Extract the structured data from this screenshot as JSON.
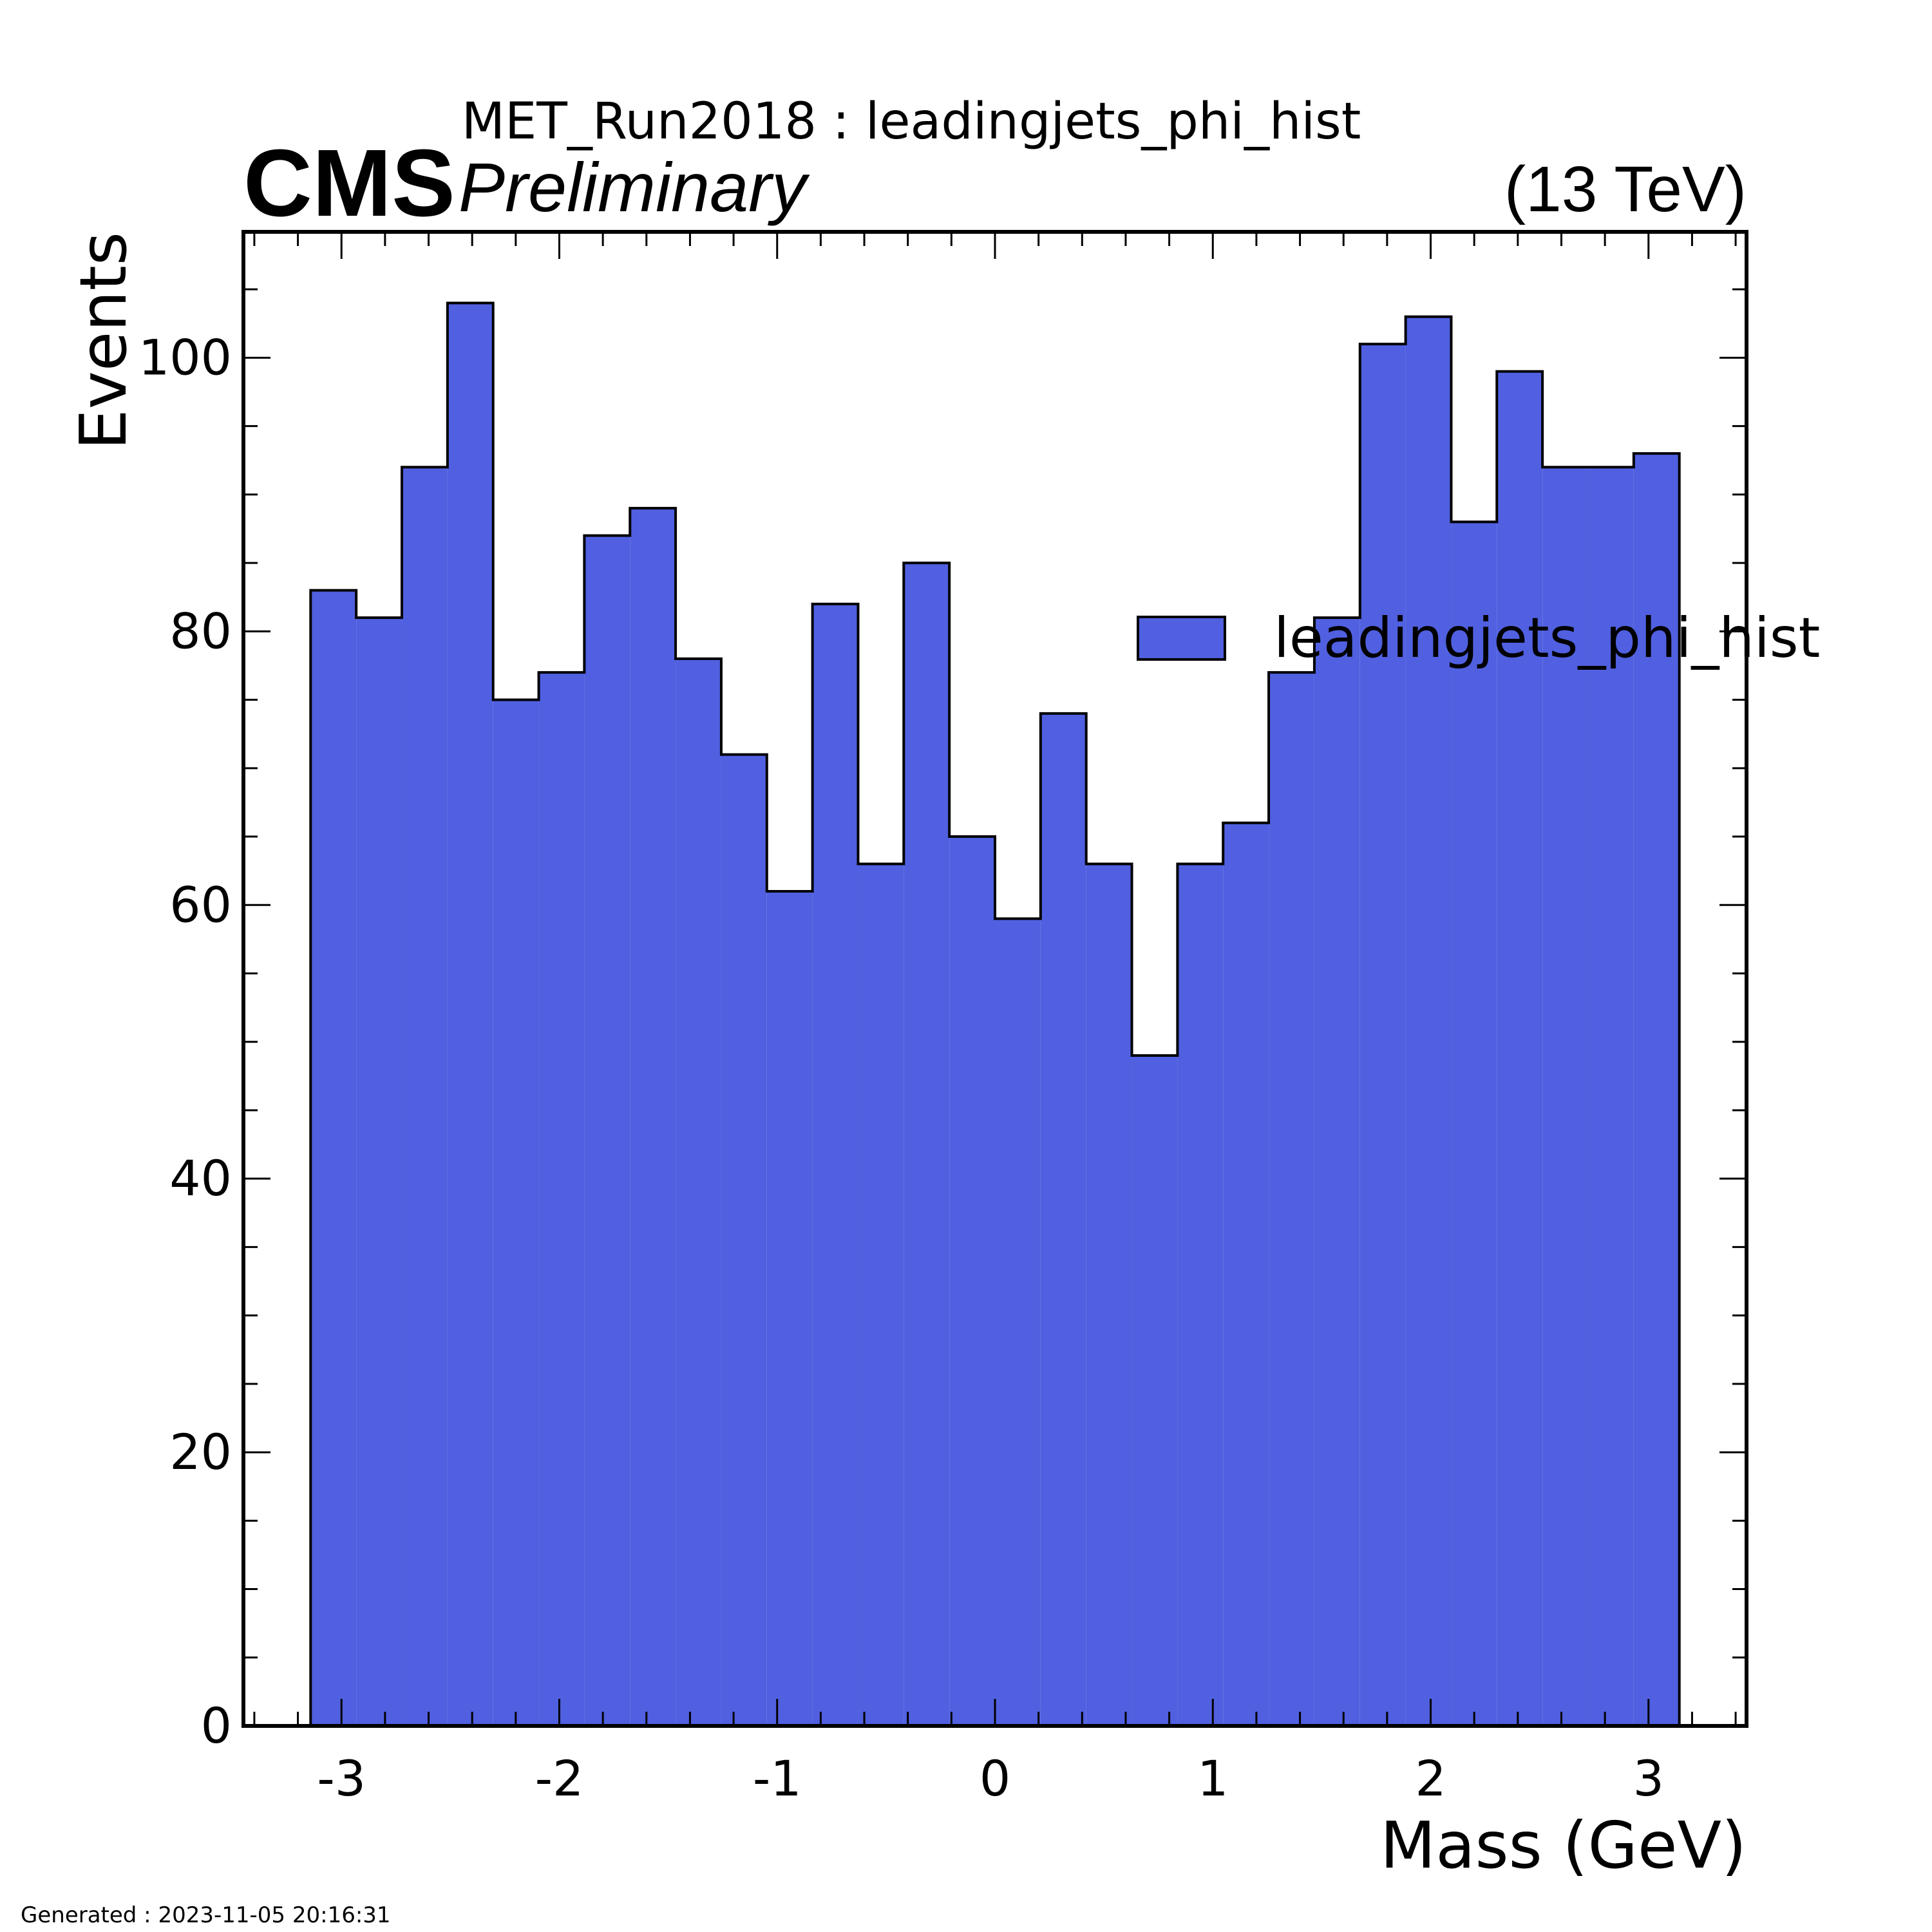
{
  "header": {
    "title": "MET_Run2018 : leadingjets_phi_hist",
    "cms_label": "CMS",
    "preliminary_label": "Preliminary",
    "energy_label": "(13 TeV)"
  },
  "footer": {
    "generated": "Generated : 2023-11-05 20:16:31"
  },
  "chart_data": {
    "type": "bar",
    "title": "MET_Run2018 : leadingjets_phi_hist",
    "xlabel": "Mass (GeV)",
    "ylabel": "Events",
    "xlim": [
      -3.45,
      3.45
    ],
    "ylim": [
      0,
      109.2
    ],
    "x_ticks": [
      -3,
      -2,
      -1,
      0,
      1,
      2,
      3
    ],
    "x_tick_labels": [
      "-3",
      "-2",
      "-1",
      "0",
      "1",
      "2",
      "3"
    ],
    "y_ticks": [
      0,
      20,
      40,
      60,
      80,
      100
    ],
    "y_tick_labels": [
      "0",
      "20",
      "40",
      "60",
      "80",
      "100"
    ],
    "bin_edges": [
      -3.1416,
      -2.9322,
      -2.7227,
      -2.5133,
      -2.3038,
      -2.0944,
      -1.885,
      -1.6755,
      -1.4661,
      -1.2566,
      -1.0472,
      -0.8378,
      -0.6283,
      -0.4189,
      -0.2094,
      0.0,
      0.2094,
      0.4189,
      0.6283,
      0.8378,
      1.0472,
      1.2566,
      1.4661,
      1.6755,
      1.885,
      2.0944,
      2.3038,
      2.5133,
      2.7227,
      2.9322,
      3.1416
    ],
    "series": [
      {
        "name": "leadingjets_phi_hist",
        "color": "#5060e0",
        "edge_color": "#000000",
        "values": [
          83,
          81,
          92,
          104,
          75,
          77,
          87,
          89,
          78,
          71,
          61,
          82,
          63,
          85,
          65,
          59,
          74,
          63,
          49,
          63,
          66,
          77,
          81,
          101,
          103,
          88,
          99,
          92,
          92,
          93
        ]
      }
    ],
    "legend_position": "upper-right",
    "grid": false
  }
}
